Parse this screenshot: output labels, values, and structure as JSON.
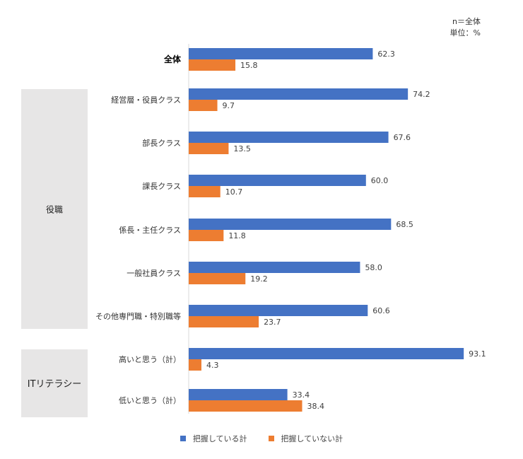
{
  "note": {
    "line1": "n＝全体",
    "line2": "単位：%"
  },
  "colors": {
    "blue": "#4472C4",
    "orange": "#ED7D31",
    "group_bg": "#E7E6E6"
  },
  "chart_data": {
    "type": "bar",
    "orientation": "horizontal",
    "xlim": [
      0,
      100
    ],
    "grid": false,
    "legend_position": "bottom",
    "groups": [
      {
        "label": "役職",
        "categories": [
          "経営層・役員クラス",
          "部長クラス",
          "課長クラス",
          "係長・主任クラス",
          "一般社員クラス",
          "その他専門職・特別職等"
        ]
      },
      {
        "label": "ITリテラシー",
        "categories": [
          "高いと思う（計）",
          "低いと思う（計）"
        ]
      }
    ],
    "categories": [
      "全体",
      "経営層・役員クラス",
      "部長クラス",
      "課長クラス",
      "係長・主任クラス",
      "一般社員クラス",
      "その他専門職・特別職等",
      "高いと思う（計）",
      "低いと思う（計）"
    ],
    "series": [
      {
        "name": "把握している計",
        "color": "#4472C4",
        "values": [
          62.3,
          74.2,
          67.6,
          60.0,
          68.5,
          58.0,
          60.6,
          93.1,
          33.4
        ]
      },
      {
        "name": "把握していない計",
        "color": "#ED7D31",
        "values": [
          15.8,
          9.7,
          13.5,
          10.7,
          11.8,
          19.2,
          23.7,
          4.3,
          38.4
        ]
      }
    ]
  }
}
